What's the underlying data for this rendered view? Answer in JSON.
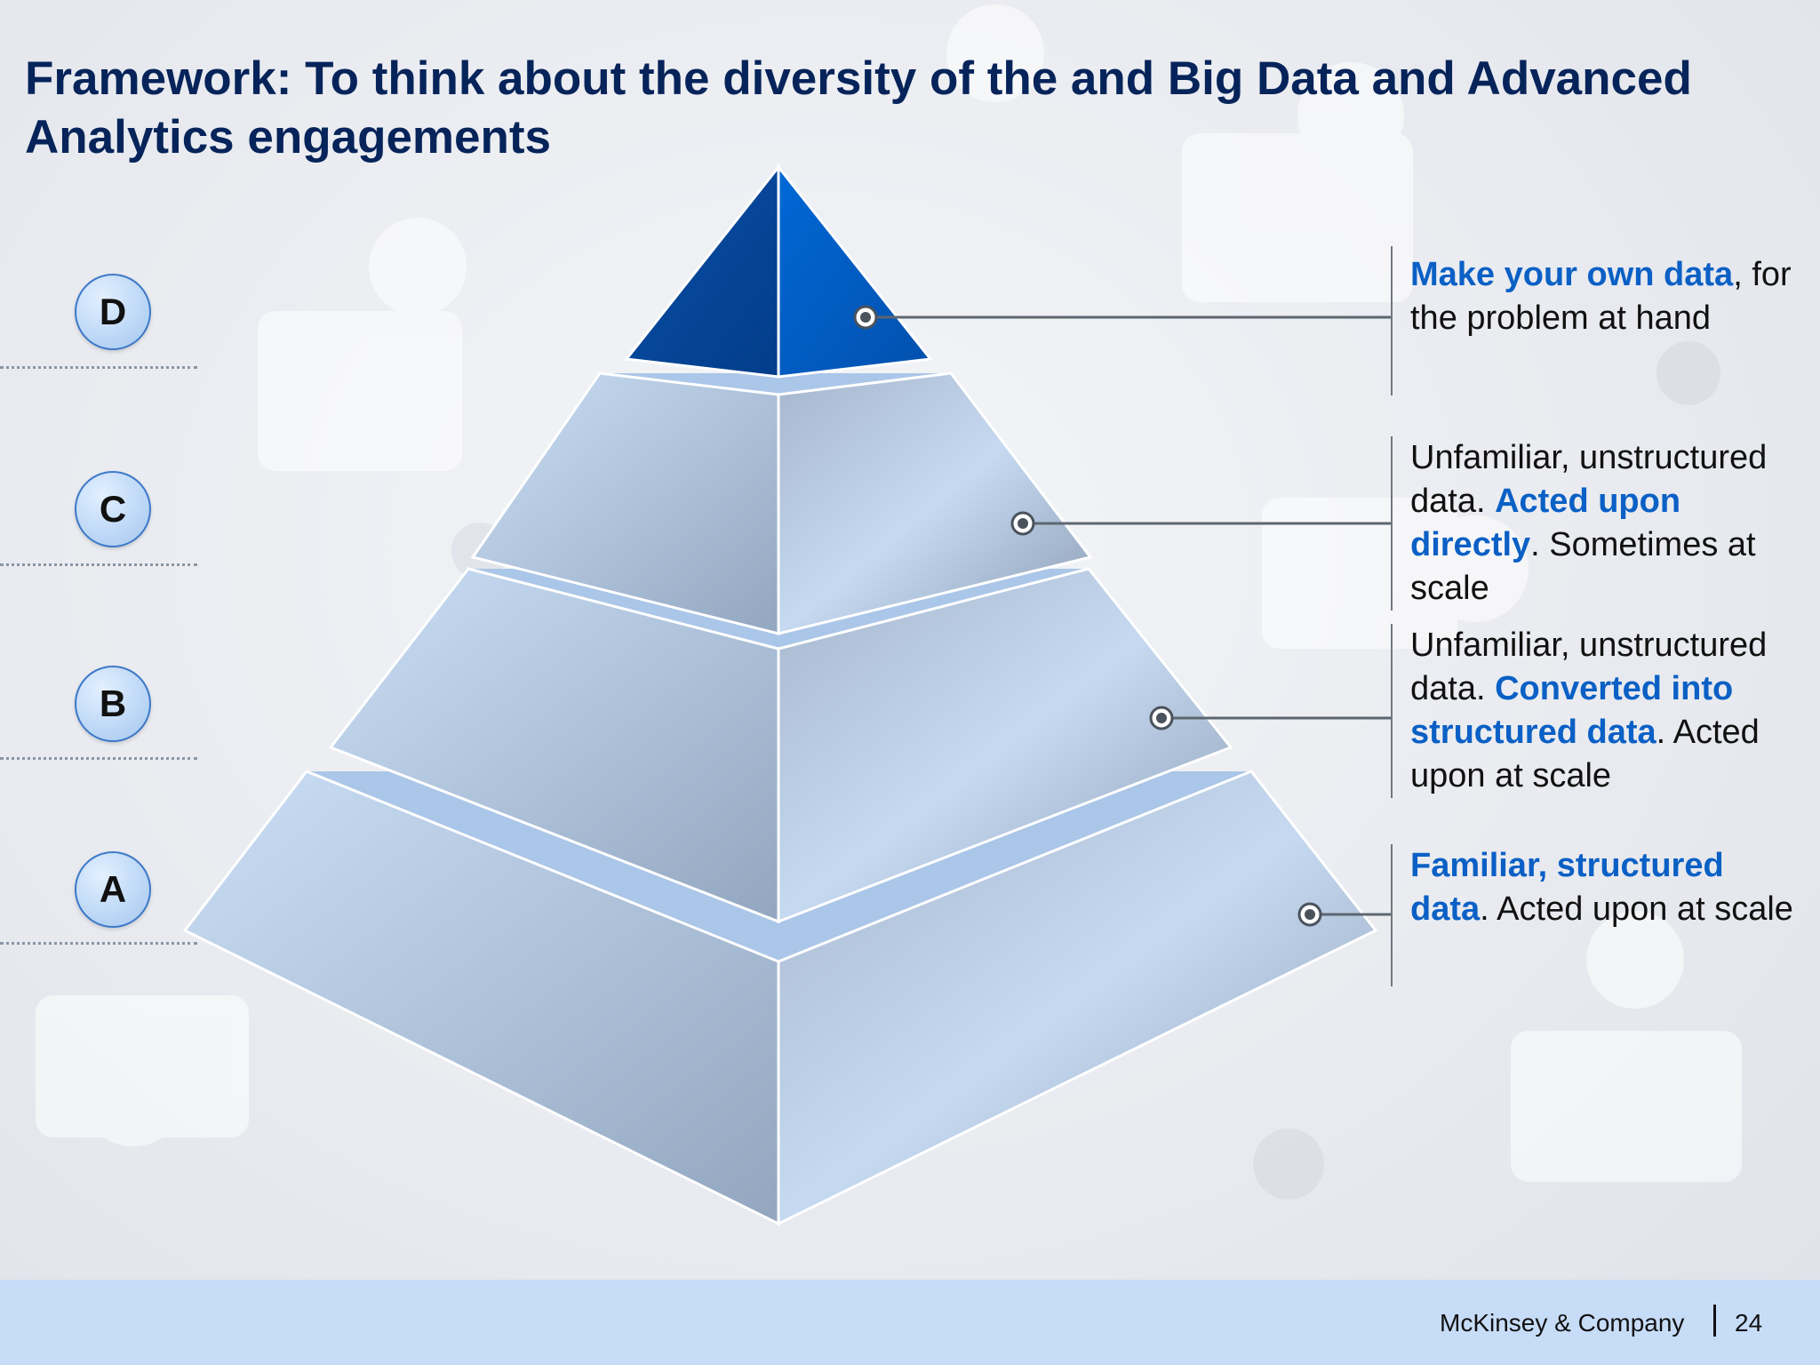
{
  "title": {
    "line1": "Framework: To think about the diversity of the and Big Data and Advanced",
    "line2": "Analytics engagements"
  },
  "levels": [
    {
      "letter": "D",
      "description": [
        {
          "text": "Make your own data",
          "highlight": true
        },
        {
          "text": ", for the problem at hand",
          "highlight": false
        }
      ]
    },
    {
      "letter": "C",
      "description": [
        {
          "text": "Unfamiliar, unstructured data. ",
          "highlight": false
        },
        {
          "text": "Acted upon directly",
          "highlight": true
        },
        {
          "text": ". Sometimes at scale",
          "highlight": false
        }
      ]
    },
    {
      "letter": "B",
      "description": [
        {
          "text": "Unfamiliar, unstructured data. ",
          "highlight": false
        },
        {
          "text": "Converted into structured data",
          "highlight": true
        },
        {
          "text": ". Acted upon at scale",
          "highlight": false
        }
      ]
    },
    {
      "letter": "A",
      "description": [
        {
          "text": "Familiar, structured data",
          "highlight": true
        },
        {
          "text": ". Acted upon at scale",
          "highlight": false
        }
      ]
    }
  ],
  "footer": {
    "company": "McKinsey & Company",
    "page": "24"
  },
  "colors": {
    "title": "#06245a",
    "highlight": "#0b60c5",
    "footer_band": "#c7dcf7",
    "apex": "#0057b8"
  }
}
